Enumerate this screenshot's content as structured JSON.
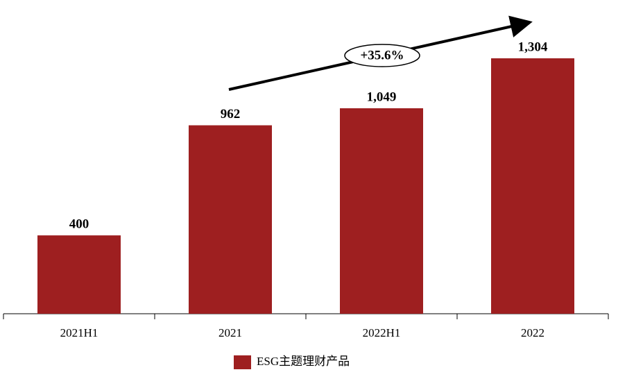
{
  "chart_data": {
    "type": "bar",
    "categories": [
      "2021H1",
      "2021",
      "2022H1",
      "2022"
    ],
    "series": [
      {
        "name": "ESG主题理财产品",
        "color": "#9e1f20",
        "values": [
          400,
          962,
          1049,
          1304
        ],
        "value_labels": [
          "400",
          "962",
          "1,049",
          "1,304"
        ]
      }
    ],
    "annotation": "+35.6%"
  }
}
